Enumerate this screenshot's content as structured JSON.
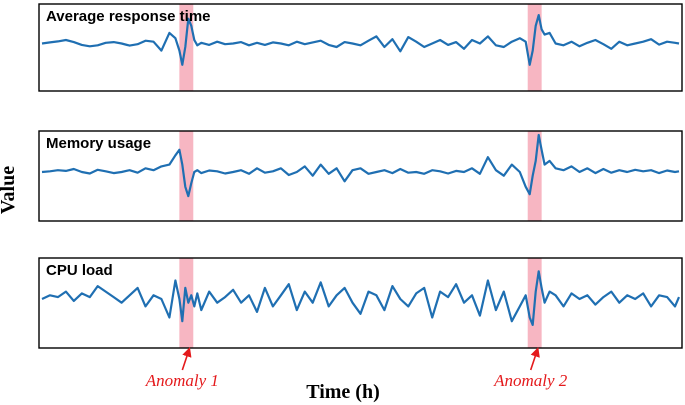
{
  "colors": {
    "line": "#1f6fb2",
    "anomaly_band": "#f7b6c2",
    "annotation": "#e41a1c",
    "frame": "#000000"
  },
  "xlabel": "Time (h)",
  "ylabel": "Value",
  "annotations": [
    {
      "label": "Anomaly 1",
      "x": 145
    },
    {
      "label": "Anomaly 2",
      "x": 495
    }
  ],
  "chart_data": [
    {
      "type": "line",
      "title": "Average response time",
      "xlim": [
        0,
        640
      ],
      "ylim": [
        -1,
        1
      ],
      "anomaly_bands": [
        [
          138,
          152
        ],
        [
          488,
          502
        ]
      ],
      "series": [
        {
          "x": [
            0,
            8,
            16,
            24,
            32,
            40,
            48,
            56,
            64,
            72,
            80,
            88,
            96,
            104,
            112,
            120,
            128,
            134,
            138,
            141,
            144,
            147,
            150,
            153,
            156,
            160,
            168,
            176,
            184,
            192,
            200,
            208,
            216,
            224,
            232,
            240,
            248,
            256,
            264,
            272,
            280,
            288,
            296,
            304,
            312,
            320,
            328,
            336,
            344,
            352,
            360,
            368,
            376,
            384,
            392,
            400,
            408,
            416,
            424,
            432,
            440,
            448,
            456,
            464,
            472,
            480,
            486,
            490,
            493,
            496,
            499,
            502,
            505,
            510,
            516,
            524,
            532,
            540,
            548,
            556,
            564,
            572,
            580,
            588,
            596,
            604,
            612,
            620,
            628,
            636,
            640
          ],
          "y": [
            0.0,
            0.03,
            0.06,
            0.1,
            0.04,
            -0.04,
            -0.08,
            -0.05,
            0.02,
            0.04,
            0.0,
            -0.06,
            -0.02,
            0.08,
            0.05,
            -0.2,
            0.3,
            0.15,
            -0.2,
            -0.6,
            -0.1,
            0.7,
            0.5,
            0.1,
            -0.05,
            0.02,
            -0.04,
            0.05,
            -0.02,
            0.0,
            0.04,
            -0.05,
            0.02,
            -0.04,
            0.03,
            0.0,
            -0.05,
            0.05,
            -0.02,
            0.03,
            0.08,
            -0.04,
            -0.1,
            0.04,
            0.0,
            -0.05,
            0.08,
            0.2,
            -0.1,
            0.12,
            -0.22,
            0.18,
            0.05,
            -0.1,
            0.0,
            0.1,
            -0.04,
            0.04,
            -0.15,
            0.1,
            0.0,
            0.2,
            -0.05,
            -0.1,
            0.05,
            0.15,
            0.05,
            -0.6,
            -0.2,
            0.5,
            0.8,
            0.4,
            0.25,
            0.3,
            0.0,
            -0.05,
            0.05,
            -0.08,
            0.02,
            0.1,
            -0.02,
            -0.15,
            0.05,
            -0.05,
            0.0,
            0.05,
            0.12,
            -0.03,
            0.05,
            0.02,
            0.0
          ]
        }
      ]
    },
    {
      "type": "line",
      "title": "Memory usage",
      "xlim": [
        0,
        640
      ],
      "ylim": [
        -1,
        1
      ],
      "anomaly_bands": [
        [
          138,
          152
        ],
        [
          488,
          502
        ]
      ],
      "series": [
        {
          "x": [
            0,
            8,
            16,
            24,
            32,
            40,
            48,
            56,
            64,
            72,
            80,
            88,
            96,
            104,
            112,
            120,
            128,
            134,
            138,
            141,
            144,
            147,
            150,
            153,
            156,
            160,
            168,
            176,
            184,
            192,
            200,
            208,
            216,
            224,
            232,
            240,
            248,
            256,
            264,
            272,
            280,
            288,
            296,
            304,
            312,
            320,
            328,
            336,
            344,
            352,
            360,
            368,
            376,
            384,
            392,
            400,
            408,
            416,
            424,
            432,
            440,
            448,
            456,
            464,
            472,
            480,
            486,
            490,
            493,
            496,
            499,
            502,
            505,
            510,
            516,
            524,
            532,
            540,
            548,
            556,
            564,
            572,
            580,
            588,
            596,
            604,
            612,
            620,
            628,
            636,
            640
          ],
          "y": [
            0.0,
            0.02,
            0.05,
            0.03,
            0.08,
            0.0,
            -0.04,
            0.06,
            0.02,
            -0.03,
            0.0,
            0.05,
            -0.02,
            0.1,
            0.05,
            0.15,
            0.2,
            0.45,
            0.6,
            0.2,
            -0.4,
            -0.65,
            -0.3,
            0.0,
            0.05,
            -0.03,
            0.04,
            0.02,
            -0.04,
            0.0,
            0.05,
            -0.05,
            0.1,
            -0.02,
            0.02,
            0.1,
            -0.08,
            0.0,
            0.15,
            -0.1,
            0.2,
            -0.05,
            0.1,
            -0.25,
            0.05,
            0.1,
            -0.05,
            0.0,
            0.05,
            -0.03,
            0.08,
            -0.02,
            0.0,
            -0.05,
            0.05,
            0.02,
            -0.04,
            0.03,
            0.0,
            0.1,
            -0.05,
            0.4,
            0.05,
            -0.1,
            0.2,
            0.0,
            -0.4,
            -0.6,
            -0.1,
            0.3,
            1.0,
            0.6,
            0.2,
            0.3,
            0.1,
            0.05,
            0.15,
            0.0,
            0.1,
            -0.03,
            0.08,
            -0.02,
            0.05,
            0.0,
            0.06,
            0.02,
            0.05,
            -0.03,
            0.04,
            0.0,
            0.02
          ]
        }
      ]
    },
    {
      "type": "line",
      "title": "CPU load",
      "xlim": [
        0,
        640
      ],
      "ylim": [
        -1,
        1
      ],
      "anomaly_bands": [
        [
          138,
          152
        ],
        [
          488,
          502
        ]
      ],
      "series": [
        {
          "x": [
            0,
            8,
            16,
            24,
            32,
            40,
            48,
            56,
            64,
            72,
            80,
            88,
            96,
            104,
            112,
            120,
            128,
            134,
            138,
            141,
            144,
            147,
            150,
            153,
            156,
            160,
            168,
            176,
            184,
            192,
            200,
            208,
            216,
            224,
            232,
            240,
            248,
            256,
            264,
            272,
            280,
            288,
            296,
            304,
            312,
            320,
            328,
            336,
            344,
            352,
            360,
            368,
            376,
            384,
            392,
            400,
            408,
            416,
            424,
            432,
            440,
            448,
            456,
            464,
            472,
            480,
            486,
            490,
            493,
            496,
            499,
            502,
            505,
            510,
            516,
            524,
            532,
            540,
            548,
            556,
            564,
            572,
            580,
            588,
            596,
            604,
            612,
            620,
            628,
            636,
            640
          ],
          "y": [
            0.0,
            0.1,
            0.05,
            0.2,
            -0.05,
            0.15,
            0.05,
            0.35,
            0.2,
            0.05,
            -0.1,
            0.1,
            0.3,
            -0.2,
            0.1,
            0.0,
            -0.5,
            0.5,
            0.0,
            -0.6,
            0.3,
            -0.1,
            0.1,
            -0.2,
            0.15,
            -0.3,
            0.2,
            -0.1,
            0.05,
            0.25,
            -0.1,
            0.1,
            -0.35,
            0.3,
            -0.2,
            0.1,
            0.4,
            -0.3,
            0.2,
            -0.1,
            0.45,
            -0.2,
            0.1,
            0.3,
            -0.1,
            -0.4,
            0.2,
            0.1,
            -0.3,
            0.35,
            0.0,
            -0.2,
            0.15,
            0.3,
            -0.5,
            0.2,
            0.05,
            0.4,
            -0.1,
            0.1,
            -0.45,
            0.5,
            -0.3,
            0.2,
            -0.6,
            -0.2,
            0.1,
            -0.5,
            -0.7,
            0.2,
            0.75,
            0.3,
            -0.1,
            0.2,
            0.1,
            -0.2,
            0.15,
            0.0,
            0.1,
            -0.15,
            0.05,
            0.2,
            -0.1,
            0.1,
            0.0,
            0.15,
            -0.2,
            0.1,
            0.05,
            -0.2,
            0.05
          ]
        }
      ]
    }
  ]
}
